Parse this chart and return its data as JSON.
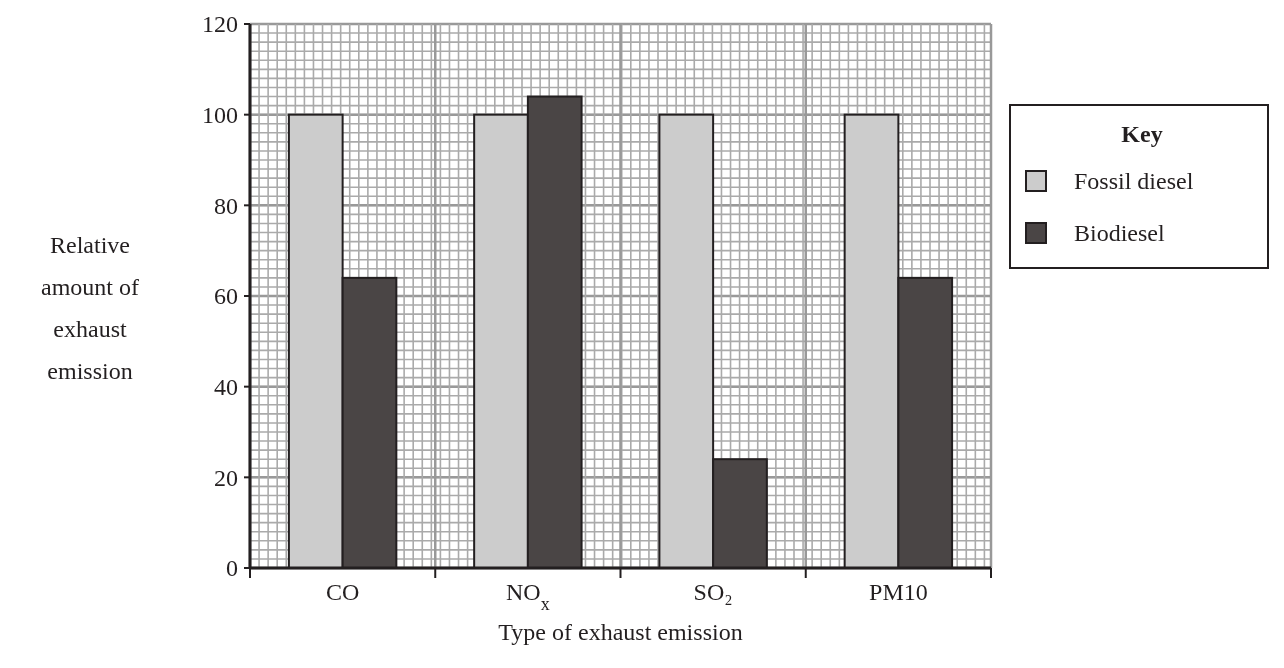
{
  "chart_data": {
    "type": "bar",
    "xlabel": "Type of exhaust emission",
    "ylabel": "Relative amount of exhaust emission",
    "legend_title": "Key",
    "categories": [
      "CO",
      "NO$_{x}$",
      "SO₂",
      "PM10"
    ],
    "series": [
      {
        "name": "Fossil diesel",
        "color": "#cccccc",
        "values": [
          100,
          100,
          100,
          100
        ]
      },
      {
        "name": "Biodiesel",
        "color": "#4a4545",
        "values": [
          64,
          104,
          24,
          64
        ]
      }
    ],
    "ylim": [
      0,
      120
    ],
    "yticks": [
      0,
      20,
      40,
      60,
      80,
      100,
      120
    ],
    "grid": true,
    "legend": "right"
  }
}
